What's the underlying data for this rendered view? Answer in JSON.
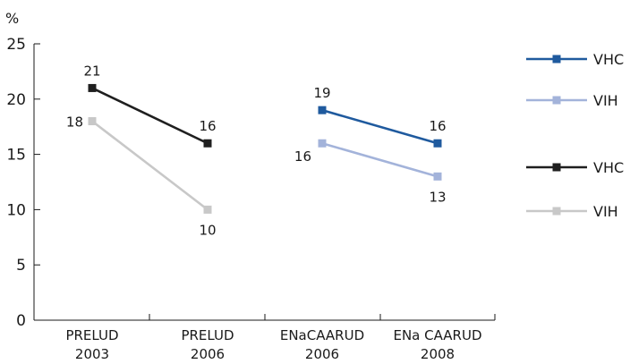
{
  "chart_data": {
    "type": "line",
    "ylabel": "%",
    "ylim": [
      0,
      25
    ],
    "yticks": [
      "0",
      "5",
      "10",
      "15",
      "20",
      "25"
    ],
    "categories": [
      {
        "line1": "PRELUD",
        "line2": "2003"
      },
      {
        "line1": "PRELUD",
        "line2": "2006"
      },
      {
        "line1": "ENaCAARUD",
        "line2": "2006"
      },
      {
        "line1": "ENa CAARUD",
        "line2": "2008"
      }
    ],
    "series": [
      {
        "name": "VHC",
        "color": "#1f1f1f",
        "points": [
          {
            "cat": 0,
            "value": 21,
            "label": "21",
            "label_pos": "above"
          },
          {
            "cat": 1,
            "value": 16,
            "label": "16",
            "label_pos": "above"
          }
        ]
      },
      {
        "name": "VIH",
        "color": "#c8c8c8",
        "points": [
          {
            "cat": 0,
            "value": 18,
            "label": "18",
            "label_pos": "left"
          },
          {
            "cat": 1,
            "value": 10,
            "label": "10",
            "label_pos": "below"
          }
        ]
      },
      {
        "name": "VHC",
        "color": "#1f5a9e",
        "points": [
          {
            "cat": 2,
            "value": 19,
            "label": "19",
            "label_pos": "above"
          },
          {
            "cat": 3,
            "value": 16,
            "label": "16",
            "label_pos": "above"
          }
        ]
      },
      {
        "name": "VIH",
        "color": "#a3b3da",
        "points": [
          {
            "cat": 2,
            "value": 16,
            "label": "16",
            "label_pos": "below-left"
          },
          {
            "cat": 3,
            "value": 13,
            "label": "13",
            "label_pos": "below"
          }
        ]
      }
    ],
    "legend": [
      {
        "name": "VHC",
        "color": "#1f5a9e"
      },
      {
        "name": "VIH",
        "color": "#a3b3da"
      },
      {
        "name": "VHC",
        "color": "#1f1f1f"
      },
      {
        "name": "VIH",
        "color": "#c8c8c8"
      }
    ],
    "legend_position": "right",
    "grid": false
  }
}
